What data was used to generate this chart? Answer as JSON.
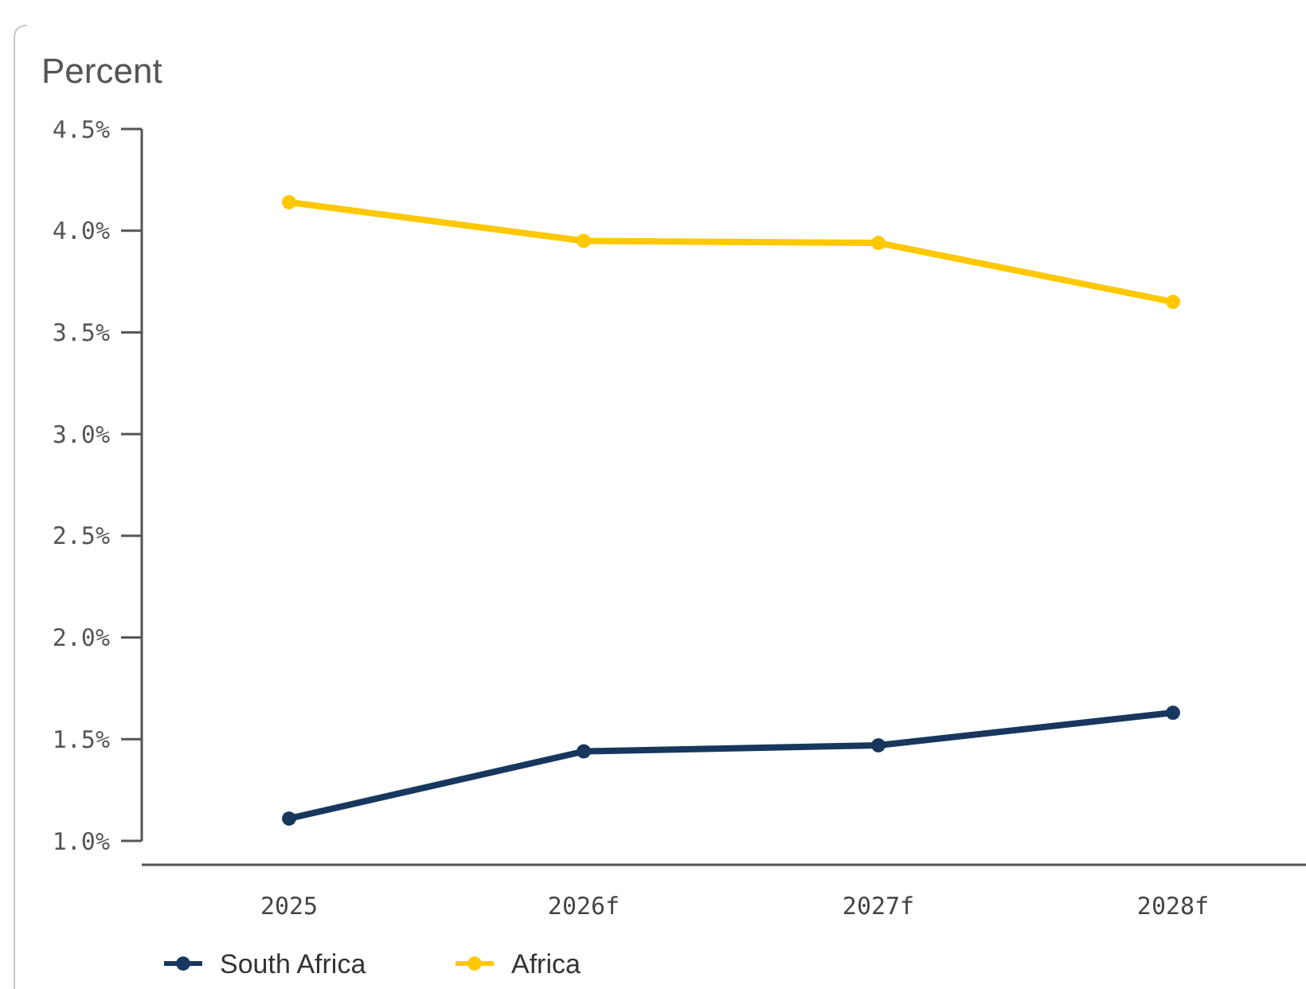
{
  "chart_data": {
    "type": "line",
    "ylabel": "Percent",
    "categories": [
      "2025",
      "2026f",
      "2027f",
      "2028f"
    ],
    "series": [
      {
        "name": "South Africa",
        "color": "#17375e",
        "values": [
          1.11,
          1.44,
          1.47,
          1.63
        ]
      },
      {
        "name": "Africa",
        "color": "#ffc800",
        "values": [
          4.14,
          3.95,
          3.94,
          3.65
        ]
      }
    ],
    "ylim": [
      1.0,
      4.5
    ],
    "yticks": [
      {
        "value": 1.0,
        "label": "1.0%"
      },
      {
        "value": 1.5,
        "label": "1.5%"
      },
      {
        "value": 2.0,
        "label": "2.0%"
      },
      {
        "value": 2.5,
        "label": "2.5%"
      },
      {
        "value": 3.0,
        "label": "3.0%"
      },
      {
        "value": 3.5,
        "label": "3.5%"
      },
      {
        "value": 4.0,
        "label": "4.0%"
      },
      {
        "value": 4.5,
        "label": "4.5%"
      }
    ],
    "grid": false,
    "legend": "bottom left",
    "marker": "circle",
    "line_style": "solid"
  }
}
